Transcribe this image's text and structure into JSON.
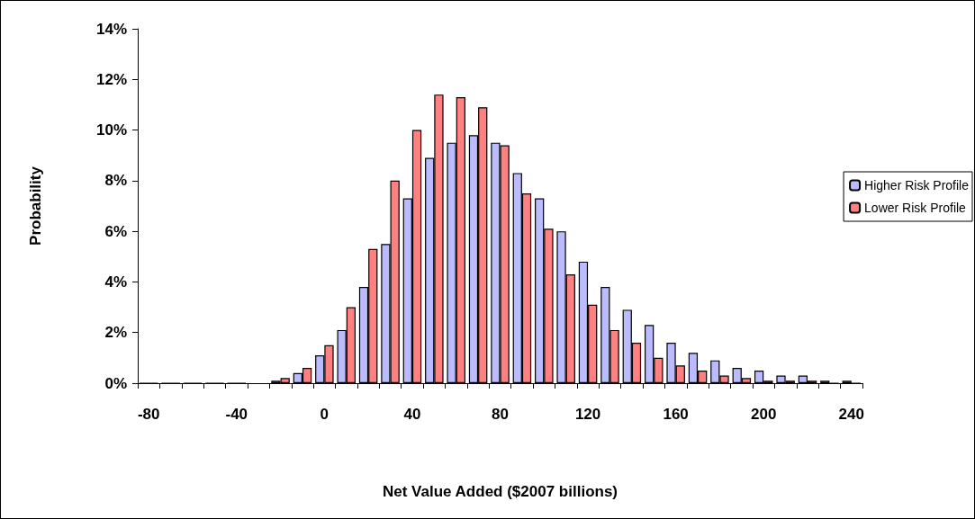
{
  "chart_data": {
    "type": "bar",
    "xlabel": "Net Value Added ($2007 billions)",
    "ylabel": "Probability",
    "categories": [
      "-80",
      null,
      null,
      null,
      "-40",
      null,
      null,
      null,
      "0",
      null,
      null,
      null,
      "40",
      null,
      null,
      null,
      "80",
      null,
      null,
      null,
      "120",
      null,
      null,
      null,
      "160",
      null,
      null,
      null,
      "200",
      null,
      null,
      null,
      "240"
    ],
    "series": [
      {
        "name": "Higher Risk Profile",
        "color": "#bbbbff",
        "values": [
          0,
          0,
          0,
          0,
          0,
          null,
          0.1,
          0.4,
          1.1,
          2.1,
          3.8,
          5.5,
          7.3,
          8.9,
          9.5,
          9.8,
          9.5,
          8.3,
          7.3,
          6.0,
          4.8,
          3.8,
          2.9,
          2.3,
          1.6,
          1.2,
          0.9,
          0.6,
          0.5,
          0.3,
          0.3,
          0.1,
          0.1
        ]
      },
      {
        "name": "Lower Risk Profile",
        "color": "#ff8080",
        "values": [
          0,
          0,
          0,
          0,
          0,
          null,
          0.2,
          0.6,
          1.5,
          3.0,
          5.3,
          8.0,
          10.0,
          11.4,
          11.3,
          10.9,
          9.4,
          7.5,
          6.1,
          4.3,
          3.1,
          2.1,
          1.6,
          1.0,
          0.7,
          0.5,
          0.3,
          0.2,
          0.1,
          0.1,
          0.1,
          0,
          0
        ]
      }
    ],
    "ylim": [
      0,
      14
    ],
    "yticks": [
      {
        "value": 0,
        "label": "0%"
      },
      {
        "value": 2,
        "label": "2%"
      },
      {
        "value": 4,
        "label": "4%"
      },
      {
        "value": 6,
        "label": "6%"
      },
      {
        "value": 8,
        "label": "8%"
      },
      {
        "value": 10,
        "label": "10%"
      },
      {
        "value": 12,
        "label": "12%"
      },
      {
        "value": 14,
        "label": "14%"
      }
    ],
    "grid": false,
    "legend": "right"
  }
}
